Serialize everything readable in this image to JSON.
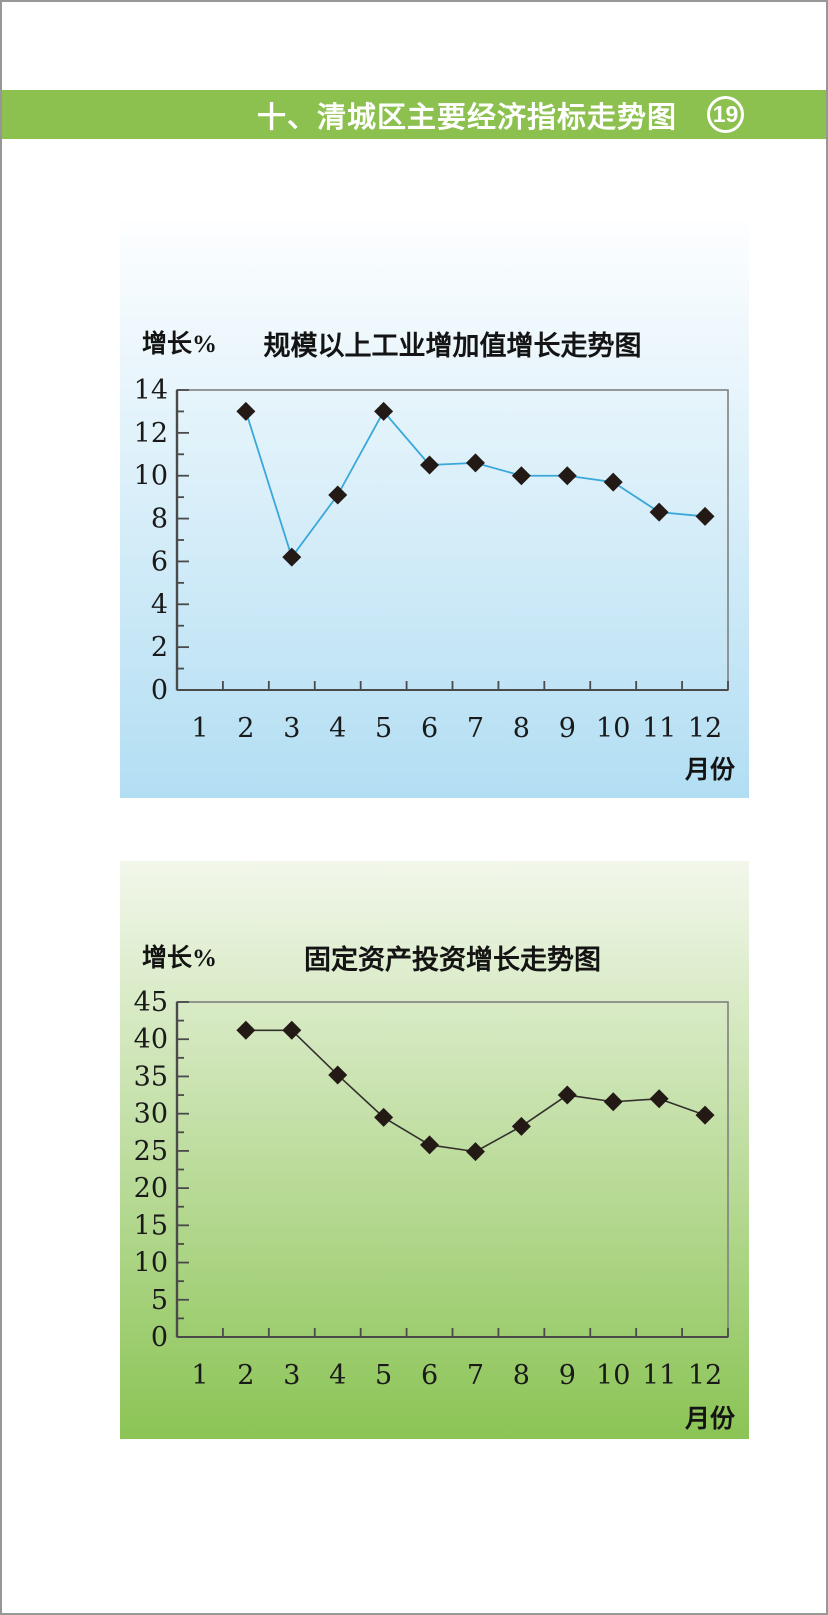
{
  "header": {
    "title": "十、清城区主要经济指标走势图",
    "page_number": "19",
    "bar_color": "#8CC04F",
    "text_color": "#FFFFFF"
  },
  "chart_data": [
    {
      "type": "line",
      "title": "规模以上工业增加值增长走势图",
      "ylabel": "增长%",
      "xlabel": "月份",
      "categories": [
        "1",
        "2",
        "3",
        "4",
        "5",
        "6",
        "7",
        "8",
        "9",
        "10",
        "11",
        "12"
      ],
      "x": [
        2,
        3,
        4,
        5,
        6,
        7,
        8,
        9,
        10,
        11,
        12
      ],
      "values": [
        13.0,
        6.2,
        9.1,
        13.0,
        10.5,
        10.6,
        10.0,
        10.0,
        9.7,
        8.3,
        8.1
      ],
      "ylim": [
        0,
        14
      ],
      "y_major_step": 2,
      "y_minor_step": 1,
      "grid": false,
      "legend": "none",
      "marker": "diamond",
      "marker_color": "#231A16",
      "line_color": "#3AA7DA",
      "line_width": 1.8,
      "axis_color": "#4A4A4A",
      "border_color": "#808080",
      "bg_gradient": [
        "#FDFEFF",
        "#B2DEF3"
      ]
    },
    {
      "type": "line",
      "title": "固定资产投资增长走势图",
      "ylabel": "增长%",
      "xlabel": "月份",
      "categories": [
        "1",
        "2",
        "3",
        "4",
        "5",
        "6",
        "7",
        "8",
        "9",
        "10",
        "11",
        "12"
      ],
      "x": [
        2,
        3,
        4,
        5,
        6,
        7,
        8,
        9,
        10,
        11,
        12
      ],
      "values": [
        41.2,
        41.2,
        35.2,
        29.5,
        25.8,
        24.9,
        28.3,
        32.5,
        31.6,
        32.0,
        29.8
      ],
      "ylim": [
        0,
        45
      ],
      "y_major_step": 5,
      "y_minor_step": 2.5,
      "grid": false,
      "legend": "none",
      "marker": "diamond",
      "marker_color": "#231A16",
      "line_color": "#33302C",
      "line_width": 1.6,
      "axis_color": "#4A4A4A",
      "border_color": "#808080",
      "bg_gradient": [
        "#F2F7EB",
        "#8BC455"
      ]
    }
  ]
}
